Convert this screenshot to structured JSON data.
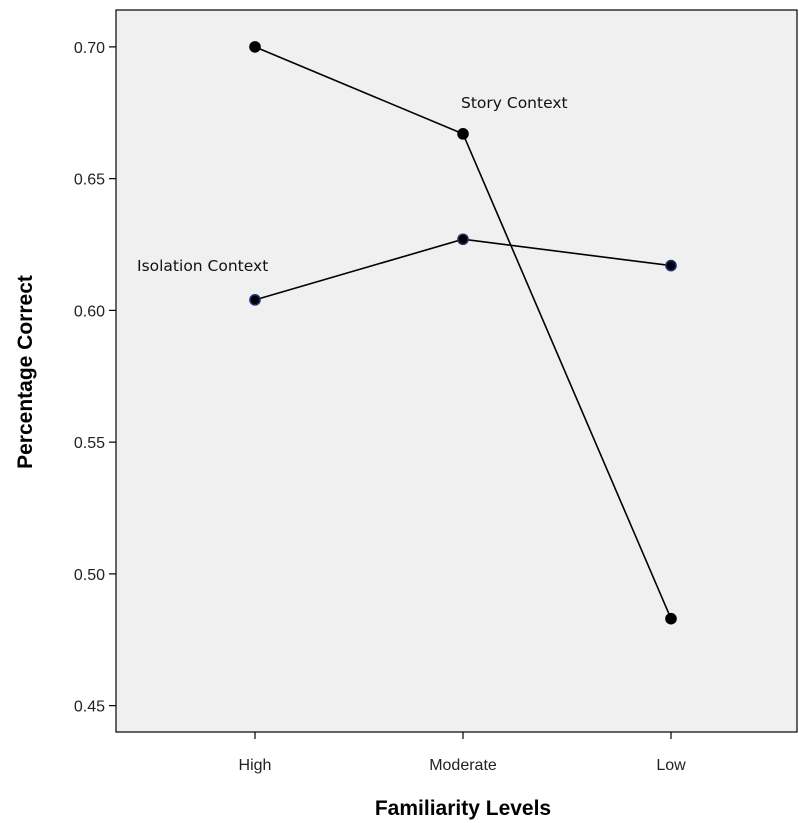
{
  "chart_data": {
    "type": "line",
    "xlabel": "Familiarity Levels",
    "ylabel": "Percentage Correct",
    "categories": [
      "High",
      "Moderate",
      "Low"
    ],
    "ylim": [
      0.44,
      0.714
    ],
    "yticks": [
      0.45,
      0.5,
      0.55,
      0.6,
      0.65,
      0.7
    ],
    "ytick_labels": [
      "0.45",
      "0.50",
      "0.55",
      "0.60",
      "0.65",
      "0.70"
    ],
    "grid": false,
    "series": [
      {
        "name": "Story Context",
        "values": [
          0.7,
          0.667,
          0.483
        ],
        "color": "#000000"
      },
      {
        "name": "Isolation Context",
        "values": [
          0.604,
          0.627,
          0.617
        ],
        "color": "#1f2b73"
      }
    ],
    "annotations": [
      {
        "text": "Story Context",
        "series": "Story Context",
        "category": "Moderate"
      },
      {
        "text": "Isolation Context",
        "series": "Isolation Context",
        "category": "High"
      }
    ],
    "plot_background": "#f0f0f0"
  }
}
